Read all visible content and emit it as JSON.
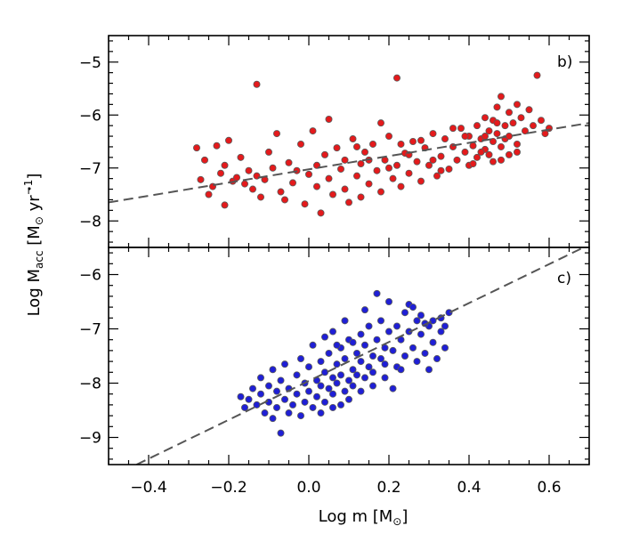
{
  "chart_data": {
    "type": "scatter",
    "shared_x_axis": {
      "label": "Log m [M⊙]",
      "label_text": "Log m [M",
      "label_tail": "]",
      "range": [
        -0.5,
        0.7
      ],
      "ticks": [
        -0.4,
        -0.2,
        0.0,
        0.2,
        0.4,
        0.6
      ],
      "tick_labels": [
        "−0.4",
        "−0.2",
        "0.0",
        "0.2",
        "0.4",
        "0.6"
      ]
    },
    "shared_y_label": "Log Ṁacc [M⊙ yr⁻¹]",
    "y_label_parts": {
      "main": "Log ",
      "m": "M",
      "sub": "acc",
      "unit_open": " [M",
      "unit_yr": " yr",
      "exp": "−1",
      "unit_close": "]"
    },
    "panels": [
      {
        "id": "b",
        "label": "b)",
        "ylim": [
          -8.5,
          -4.5
        ],
        "yticks": [
          -8,
          -7,
          -6,
          -5
        ],
        "ytick_labels": [
          "−8",
          "−7",
          "−6",
          "−5"
        ],
        "point_color": "#e41a1c",
        "fit_line": {
          "x": [
            -0.5,
            0.7
          ],
          "y": [
            -7.65,
            -6.15
          ]
        },
        "points": [
          {
            "x": -0.28,
            "y": -6.62
          },
          {
            "x": -0.27,
            "y": -7.22
          },
          {
            "x": -0.26,
            "y": -6.85
          },
          {
            "x": -0.25,
            "y": -7.5
          },
          {
            "x": -0.24,
            "y": -7.35
          },
          {
            "x": -0.23,
            "y": -6.58
          },
          {
            "x": -0.22,
            "y": -7.1
          },
          {
            "x": -0.21,
            "y": -7.7
          },
          {
            "x": -0.21,
            "y": -6.95
          },
          {
            "x": -0.2,
            "y": -6.48
          },
          {
            "x": -0.19,
            "y": -7.25
          },
          {
            "x": -0.18,
            "y": -7.18
          },
          {
            "x": -0.17,
            "y": -6.8
          },
          {
            "x": -0.16,
            "y": -7.3
          },
          {
            "x": -0.15,
            "y": -7.05
          },
          {
            "x": -0.14,
            "y": -7.4
          },
          {
            "x": -0.13,
            "y": -5.42
          },
          {
            "x": -0.13,
            "y": -7.15
          },
          {
            "x": -0.12,
            "y": -7.55
          },
          {
            "x": -0.11,
            "y": -7.22
          },
          {
            "x": -0.1,
            "y": -6.7
          },
          {
            "x": -0.09,
            "y": -7.0
          },
          {
            "x": -0.08,
            "y": -6.35
          },
          {
            "x": -0.07,
            "y": -7.45
          },
          {
            "x": -0.06,
            "y": -7.6
          },
          {
            "x": -0.05,
            "y": -6.9
          },
          {
            "x": -0.04,
            "y": -7.28
          },
          {
            "x": -0.03,
            "y": -7.05
          },
          {
            "x": -0.02,
            "y": -6.55
          },
          {
            "x": -0.01,
            "y": -7.68
          },
          {
            "x": 0.0,
            "y": -7.12
          },
          {
            "x": 0.01,
            "y": -6.3
          },
          {
            "x": 0.02,
            "y": -7.35
          },
          {
            "x": 0.02,
            "y": -6.95
          },
          {
            "x": 0.03,
            "y": -7.85
          },
          {
            "x": 0.04,
            "y": -6.75
          },
          {
            "x": 0.05,
            "y": -7.2
          },
          {
            "x": 0.05,
            "y": -6.08
          },
          {
            "x": 0.06,
            "y": -7.5
          },
          {
            "x": 0.07,
            "y": -6.62
          },
          {
            "x": 0.08,
            "y": -7.02
          },
          {
            "x": 0.09,
            "y": -7.4
          },
          {
            "x": 0.09,
            "y": -6.85
          },
          {
            "x": 0.1,
            "y": -7.65
          },
          {
            "x": 0.11,
            "y": -6.45
          },
          {
            "x": 0.12,
            "y": -7.15
          },
          {
            "x": 0.13,
            "y": -6.92
          },
          {
            "x": 0.13,
            "y": -7.55
          },
          {
            "x": 0.14,
            "y": -6.7
          },
          {
            "x": 0.15,
            "y": -7.3
          },
          {
            "x": 0.16,
            "y": -6.55
          },
          {
            "x": 0.17,
            "y": -7.05
          },
          {
            "x": 0.18,
            "y": -7.45
          },
          {
            "x": 0.19,
            "y": -6.85
          },
          {
            "x": 0.2,
            "y": -6.4
          },
          {
            "x": 0.21,
            "y": -7.2
          },
          {
            "x": 0.22,
            "y": -5.3
          },
          {
            "x": 0.22,
            "y": -6.95
          },
          {
            "x": 0.23,
            "y": -7.35
          },
          {
            "x": 0.24,
            "y": -6.72
          },
          {
            "x": 0.25,
            "y": -7.1
          },
          {
            "x": 0.26,
            "y": -6.5
          },
          {
            "x": 0.27,
            "y": -6.88
          },
          {
            "x": 0.28,
            "y": -7.25
          },
          {
            "x": 0.29,
            "y": -6.62
          },
          {
            "x": 0.3,
            "y": -6.95
          },
          {
            "x": 0.31,
            "y": -6.35
          },
          {
            "x": 0.32,
            "y": -7.15
          },
          {
            "x": 0.33,
            "y": -6.78
          },
          {
            "x": 0.34,
            "y": -6.45
          },
          {
            "x": 0.35,
            "y": -7.02
          },
          {
            "x": 0.36,
            "y": -6.6
          },
          {
            "x": 0.37,
            "y": -6.85
          },
          {
            "x": 0.38,
            "y": -6.25
          },
          {
            "x": 0.39,
            "y": -6.7
          },
          {
            "x": 0.4,
            "y": -6.95
          },
          {
            "x": 0.4,
            "y": -6.4
          },
          {
            "x": 0.41,
            "y": -6.58
          },
          {
            "x": 0.42,
            "y": -6.2
          },
          {
            "x": 0.42,
            "y": -6.8
          },
          {
            "x": 0.43,
            "y": -6.45
          },
          {
            "x": 0.44,
            "y": -6.05
          },
          {
            "x": 0.44,
            "y": -6.65
          },
          {
            "x": 0.45,
            "y": -6.3
          },
          {
            "x": 0.45,
            "y": -6.75
          },
          {
            "x": 0.46,
            "y": -6.1
          },
          {
            "x": 0.46,
            "y": -6.5
          },
          {
            "x": 0.47,
            "y": -5.85
          },
          {
            "x": 0.47,
            "y": -6.35
          },
          {
            "x": 0.48,
            "y": -6.6
          },
          {
            "x": 0.48,
            "y": -5.65
          },
          {
            "x": 0.49,
            "y": -6.2
          },
          {
            "x": 0.49,
            "y": -6.45
          },
          {
            "x": 0.5,
            "y": -5.95
          },
          {
            "x": 0.5,
            "y": -6.4
          },
          {
            "x": 0.51,
            "y": -6.15
          },
          {
            "x": 0.52,
            "y": -5.8
          },
          {
            "x": 0.52,
            "y": -6.55
          },
          {
            "x": 0.53,
            "y": -6.05
          },
          {
            "x": 0.54,
            "y": -6.3
          },
          {
            "x": 0.55,
            "y": -5.9
          },
          {
            "x": 0.56,
            "y": -6.2
          },
          {
            "x": 0.57,
            "y": -5.25
          },
          {
            "x": 0.58,
            "y": -6.1
          },
          {
            "x": 0.59,
            "y": -6.35
          },
          {
            "x": 0.6,
            "y": -6.25
          },
          {
            "x": 0.46,
            "y": -6.88
          },
          {
            "x": 0.43,
            "y": -6.7
          },
          {
            "x": 0.41,
            "y": -6.92
          },
          {
            "x": 0.39,
            "y": -6.4
          },
          {
            "x": 0.36,
            "y": -6.25
          },
          {
            "x": 0.33,
            "y": -7.05
          },
          {
            "x": 0.31,
            "y": -6.85
          },
          {
            "x": 0.28,
            "y": -6.48
          },
          {
            "x": 0.25,
            "y": -6.75
          },
          {
            "x": 0.23,
            "y": -6.55
          },
          {
            "x": 0.2,
            "y": -7.0
          },
          {
            "x": 0.18,
            "y": -6.15
          },
          {
            "x": 0.15,
            "y": -6.85
          },
          {
            "x": 0.12,
            "y": -6.6
          },
          {
            "x": 0.52,
            "y": -6.7
          },
          {
            "x": 0.5,
            "y": -6.75
          },
          {
            "x": 0.48,
            "y": -6.85
          },
          {
            "x": 0.44,
            "y": -6.4
          },
          {
            "x": 0.47,
            "y": -6.15
          }
        ]
      },
      {
        "id": "c",
        "label": "c)",
        "ylim": [
          -9.5,
          -5.5
        ],
        "yticks": [
          -9,
          -8,
          -7,
          -6
        ],
        "ytick_labels": [
          "−9",
          "−8",
          "−7",
          "−6"
        ],
        "point_color": "#1f1fd6",
        "fit_line": {
          "x": [
            -0.43,
            0.7
          ],
          "y": [
            -9.5,
            -5.45
          ]
        },
        "points": [
          {
            "x": -0.17,
            "y": -8.25
          },
          {
            "x": -0.16,
            "y": -8.45
          },
          {
            "x": -0.15,
            "y": -8.3
          },
          {
            "x": -0.14,
            "y": -8.1
          },
          {
            "x": -0.13,
            "y": -8.4
          },
          {
            "x": -0.12,
            "y": -8.2
          },
          {
            "x": -0.11,
            "y": -8.55
          },
          {
            "x": -0.1,
            "y": -8.05
          },
          {
            "x": -0.1,
            "y": -8.35
          },
          {
            "x": -0.09,
            "y": -8.65
          },
          {
            "x": -0.08,
            "y": -8.15
          },
          {
            "x": -0.08,
            "y": -8.45
          },
          {
            "x": -0.07,
            "y": -8.92
          },
          {
            "x": -0.07,
            "y": -7.95
          },
          {
            "x": -0.06,
            "y": -8.3
          },
          {
            "x": -0.05,
            "y": -8.55
          },
          {
            "x": -0.05,
            "y": -8.1
          },
          {
            "x": -0.04,
            "y": -8.4
          },
          {
            "x": -0.03,
            "y": -7.85
          },
          {
            "x": -0.03,
            "y": -8.2
          },
          {
            "x": -0.02,
            "y": -8.6
          },
          {
            "x": -0.01,
            "y": -8.0
          },
          {
            "x": -0.01,
            "y": -8.35
          },
          {
            "x": 0.0,
            "y": -7.7
          },
          {
            "x": 0.0,
            "y": -8.15
          },
          {
            "x": 0.01,
            "y": -8.45
          },
          {
            "x": 0.02,
            "y": -7.95
          },
          {
            "x": 0.02,
            "y": -8.25
          },
          {
            "x": 0.03,
            "y": -7.6
          },
          {
            "x": 0.03,
            "y": -8.05
          },
          {
            "x": 0.04,
            "y": -8.35
          },
          {
            "x": 0.04,
            "y": -7.8
          },
          {
            "x": 0.05,
            "y": -8.1
          },
          {
            "x": 0.05,
            "y": -7.45
          },
          {
            "x": 0.06,
            "y": -7.9
          },
          {
            "x": 0.06,
            "y": -8.2
          },
          {
            "x": 0.07,
            "y": -7.65
          },
          {
            "x": 0.07,
            "y": -8.0
          },
          {
            "x": 0.08,
            "y": -7.35
          },
          {
            "x": 0.08,
            "y": -7.85
          },
          {
            "x": 0.09,
            "y": -8.15
          },
          {
            "x": 0.09,
            "y": -7.55
          },
          {
            "x": 0.1,
            "y": -7.95
          },
          {
            "x": 0.1,
            "y": -7.2
          },
          {
            "x": 0.11,
            "y": -7.75
          },
          {
            "x": 0.11,
            "y": -8.05
          },
          {
            "x": 0.12,
            "y": -7.45
          },
          {
            "x": 0.12,
            "y": -7.85
          },
          {
            "x": 0.13,
            "y": -7.1
          },
          {
            "x": 0.13,
            "y": -7.6
          },
          {
            "x": 0.14,
            "y": -7.9
          },
          {
            "x": 0.14,
            "y": -7.3
          },
          {
            "x": 0.15,
            "y": -7.7
          },
          {
            "x": 0.15,
            "y": -6.95
          },
          {
            "x": 0.16,
            "y": -7.5
          },
          {
            "x": 0.16,
            "y": -7.8
          },
          {
            "x": 0.17,
            "y": -6.35
          },
          {
            "x": 0.17,
            "y": -7.2
          },
          {
            "x": 0.18,
            "y": -7.55
          },
          {
            "x": 0.18,
            "y": -6.85
          },
          {
            "x": 0.19,
            "y": -7.35
          },
          {
            "x": 0.19,
            "y": -7.65
          },
          {
            "x": 0.2,
            "y": -7.05
          },
          {
            "x": 0.2,
            "y": -6.5
          },
          {
            "x": 0.21,
            "y": -7.4
          },
          {
            "x": 0.22,
            "y": -6.95
          },
          {
            "x": 0.22,
            "y": -7.7
          },
          {
            "x": 0.23,
            "y": -7.2
          },
          {
            "x": 0.24,
            "y": -6.7
          },
          {
            "x": 0.24,
            "y": -7.5
          },
          {
            "x": 0.25,
            "y": -7.05
          },
          {
            "x": 0.25,
            "y": -6.55
          },
          {
            "x": 0.26,
            "y": -7.35
          },
          {
            "x": 0.27,
            "y": -6.85
          },
          {
            "x": 0.27,
            "y": -7.6
          },
          {
            "x": 0.28,
            "y": -7.1
          },
          {
            "x": 0.28,
            "y": -6.75
          },
          {
            "x": 0.29,
            "y": -7.45
          },
          {
            "x": 0.3,
            "y": -6.95
          },
          {
            "x": 0.3,
            "y": -7.75
          },
          {
            "x": 0.31,
            "y": -7.25
          },
          {
            "x": 0.31,
            "y": -6.85
          },
          {
            "x": 0.32,
            "y": -7.55
          },
          {
            "x": 0.33,
            "y": -7.05
          },
          {
            "x": 0.33,
            "y": -6.8
          },
          {
            "x": 0.34,
            "y": -7.35
          },
          {
            "x": 0.34,
            "y": -6.95
          },
          {
            "x": 0.35,
            "y": -6.7
          },
          {
            "x": -0.02,
            "y": -7.55
          },
          {
            "x": 0.01,
            "y": -7.3
          },
          {
            "x": 0.04,
            "y": -7.15
          },
          {
            "x": 0.06,
            "y": -7.05
          },
          {
            "x": 0.09,
            "y": -6.85
          },
          {
            "x": 0.11,
            "y": -7.25
          },
          {
            "x": 0.14,
            "y": -6.65
          },
          {
            "x": 0.03,
            "y": -8.55
          },
          {
            "x": 0.06,
            "y": -8.45
          },
          {
            "x": 0.1,
            "y": -8.3
          },
          {
            "x": 0.13,
            "y": -8.15
          },
          {
            "x": 0.16,
            "y": -8.05
          },
          {
            "x": -0.12,
            "y": -7.9
          },
          {
            "x": -0.09,
            "y": -7.75
          },
          {
            "x": -0.06,
            "y": -7.65
          },
          {
            "x": 0.07,
            "y": -7.3
          },
          {
            "x": 0.08,
            "y": -8.4
          },
          {
            "x": 0.19,
            "y": -7.9
          },
          {
            "x": 0.21,
            "y": -8.1
          },
          {
            "x": 0.23,
            "y": -7.75
          },
          {
            "x": 0.26,
            "y": -6.6
          },
          {
            "x": 0.29,
            "y": -6.9
          }
        ]
      }
    ]
  }
}
